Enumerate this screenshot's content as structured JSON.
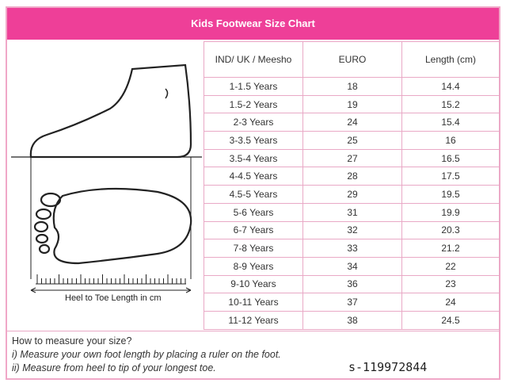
{
  "title": "Kids Footwear Size Chart",
  "headers": [
    "IND/ UK / Meesho",
    "EURO",
    "Length (cm)"
  ],
  "rows": [
    [
      "1-1.5 Years",
      "18",
      "14.4"
    ],
    [
      "1.5-2 Years",
      "19",
      "15.2"
    ],
    [
      "2-3 Years",
      "24",
      "15.4"
    ],
    [
      "3-3.5 Years",
      "25",
      "16"
    ],
    [
      "3.5-4 Years",
      "27",
      "16.5"
    ],
    [
      "4-4.5 Years",
      "28",
      "17.5"
    ],
    [
      "4.5-5 Years",
      "29",
      "19.5"
    ],
    [
      "5-6 Years",
      "31",
      "19.9"
    ],
    [
      "6-7 Years",
      "32",
      "20.3"
    ],
    [
      "7-8 Years",
      "33",
      "21.2"
    ],
    [
      "8-9 Years",
      "34",
      "22"
    ],
    [
      "9-10 Years",
      "36",
      "23"
    ],
    [
      "10-11 Years",
      "37",
      "24"
    ],
    [
      "11-12 Years",
      "38",
      "24.5"
    ]
  ],
  "diagram_label": "Heel to Toe Length in cm",
  "instructions": {
    "heading": "How to measure your size?",
    "step1": "i) Measure your own foot length by placing a ruler on the foot.",
    "step2": "ii) Measure from heel to tip of your longest toe."
  },
  "watermark": "s-119972844",
  "colors": {
    "header": "#ee3f98",
    "border": "#e9a9c6"
  }
}
